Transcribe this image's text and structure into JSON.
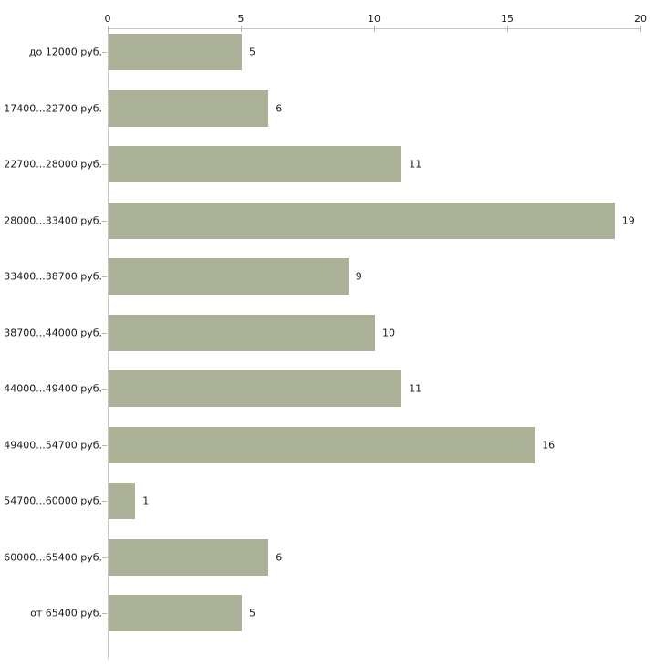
{
  "chart_data": {
    "type": "bar",
    "orientation": "horizontal",
    "title": "",
    "xlabel": "",
    "ylabel": "",
    "axis_position": "top",
    "grid": false,
    "legend": false,
    "xlim": [
      0,
      20
    ],
    "x_ticks": [
      "0",
      "5",
      "10",
      "15",
      "20"
    ],
    "categories": [
      "до 12000 руб.",
      "17400...22700 руб.",
      "22700...28000 руб.",
      "28000...33400 руб.",
      "33400...38700 руб.",
      "38700...44000 руб.",
      "44000...49400 руб.",
      "49400...54700 руб.",
      "54700...60000 руб.",
      "60000...65400 руб.",
      "от 65400 руб."
    ],
    "values": [
      5,
      6,
      11,
      19,
      9,
      10,
      11,
      16,
      1,
      6,
      5
    ],
    "colors": {
      "bar_fill": "#abb298",
      "axis_line": "#c6c6c6",
      "tick_mark": "#c5b98b",
      "text": "#1a1a1a",
      "background": "#ffffff"
    }
  }
}
